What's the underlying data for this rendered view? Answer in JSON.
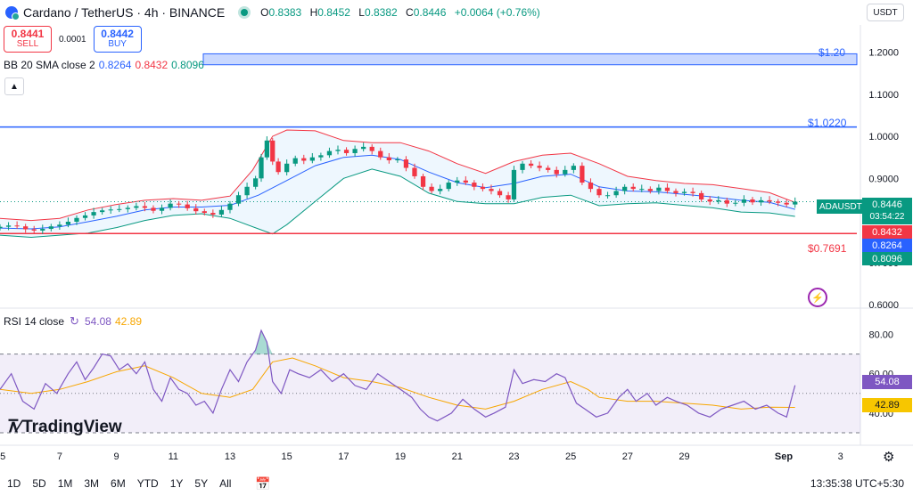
{
  "header": {
    "title": "Cardano / TetherUS · 4h · BINANCE",
    "ohlc": [
      {
        "k": "O",
        "v": "0.8383"
      },
      {
        "k": "H",
        "v": "0.8452"
      },
      {
        "k": "L",
        "v": "0.8382"
      },
      {
        "k": "C",
        "v": "0.8446"
      }
    ],
    "change": "+0.0064 (+0.76%)"
  },
  "trade": {
    "sell_price": "0.8441",
    "sell_label": "SELL",
    "spread": "0.0001",
    "buy_price": "0.8442",
    "buy_label": "BUY"
  },
  "currency": "USDT",
  "bb_legend": {
    "label": "BB 20 SMA close 2",
    "basis": "0.8264",
    "upper": "0.8432",
    "lower": "0.8096"
  },
  "rsi_legend": {
    "label": "RSI 14 close",
    "rsi": "54.08",
    "sma": "42.89"
  },
  "price_tags": {
    "symbol": "ADAUSDT",
    "last": "0.8446",
    "countdown": "03:54:22",
    "upper": "0.8432",
    "basis": "0.8264",
    "lower": "0.8096"
  },
  "rsi_tags": {
    "rsi": "54.08",
    "sma": "42.89"
  },
  "levels": {
    "l120": "$1.20",
    "l1022": "$1.0220",
    "l7691": "$0.7691"
  },
  "logo": "TradingView",
  "toolbar": {
    "timeframes": [
      "1D",
      "5D",
      "1M",
      "3M",
      "6M",
      "YTD",
      "1Y",
      "5Y",
      "All"
    ]
  },
  "clock": "13:35:38 UTC+5:30",
  "colors": {
    "up": "#089981",
    "down": "#f23645",
    "bb_basis": "#2962ff",
    "bb_upper": "#f23645",
    "bb_lower": "#089981",
    "rsi": "#7e57c2",
    "rsi_sma": "#f7a600"
  },
  "chart_data": {
    "type": "candlestick",
    "title": "Cardano / TetherUS · 4h · BINANCE",
    "price_axis": {
      "ticks": [
        "1.2000",
        "1.1000",
        "1.0000",
        "0.9000",
        "0.8000",
        "0.7000",
        "0.6000"
      ],
      "range": [
        0.596,
        1.235
      ]
    },
    "x_axis": {
      "ticks": [
        "5",
        "7",
        "9",
        "11",
        "13",
        "15",
        "17",
        "19",
        "21",
        "23",
        "25",
        "27",
        "29",
        "Sep",
        "3"
      ],
      "range_days": [
        4.9,
        35.2
      ]
    },
    "close_series": [
      [
        4.9,
        0.785
      ],
      [
        5.2,
        0.788
      ],
      [
        5.5,
        0.786
      ],
      [
        5.8,
        0.779
      ],
      [
        6.1,
        0.776
      ],
      [
        6.4,
        0.78
      ],
      [
        6.7,
        0.786
      ],
      [
        7.0,
        0.79
      ],
      [
        7.3,
        0.797
      ],
      [
        7.6,
        0.806
      ],
      [
        7.9,
        0.812
      ],
      [
        8.2,
        0.82
      ],
      [
        8.5,
        0.824
      ],
      [
        8.8,
        0.826
      ],
      [
        9.1,
        0.827
      ],
      [
        9.4,
        0.83
      ],
      [
        9.7,
        0.834
      ],
      [
        10.0,
        0.83
      ],
      [
        10.3,
        0.823
      ],
      [
        10.6,
        0.83
      ],
      [
        10.9,
        0.84
      ],
      [
        11.2,
        0.838
      ],
      [
        11.5,
        0.829
      ],
      [
        11.8,
        0.822
      ],
      [
        12.1,
        0.818
      ],
      [
        12.4,
        0.814
      ],
      [
        12.7,
        0.825
      ],
      [
        13.0,
        0.84
      ],
      [
        13.3,
        0.86
      ],
      [
        13.6,
        0.88
      ],
      [
        13.9,
        0.9
      ],
      [
        14.1,
        0.95
      ],
      [
        14.3,
        0.99
      ],
      [
        14.5,
        0.94
      ],
      [
        14.7,
        0.915
      ],
      [
        15.0,
        0.935
      ],
      [
        15.3,
        0.948
      ],
      [
        15.6,
        0.942
      ],
      [
        15.9,
        0.95
      ],
      [
        16.2,
        0.955
      ],
      [
        16.5,
        0.965
      ],
      [
        16.8,
        0.968
      ],
      [
        17.1,
        0.96
      ],
      [
        17.4,
        0.97
      ],
      [
        17.7,
        0.975
      ],
      [
        18.0,
        0.965
      ],
      [
        18.3,
        0.95
      ],
      [
        18.6,
        0.943
      ],
      [
        18.9,
        0.945
      ],
      [
        19.2,
        0.925
      ],
      [
        19.5,
        0.905
      ],
      [
        19.8,
        0.88
      ],
      [
        20.1,
        0.87
      ],
      [
        20.4,
        0.875
      ],
      [
        20.7,
        0.89
      ],
      [
        21.0,
        0.895
      ],
      [
        21.3,
        0.89
      ],
      [
        21.6,
        0.88
      ],
      [
        21.9,
        0.875
      ],
      [
        22.2,
        0.87
      ],
      [
        22.5,
        0.86
      ],
      [
        22.8,
        0.85
      ],
      [
        23.0,
        0.92
      ],
      [
        23.3,
        0.935
      ],
      [
        23.6,
        0.93
      ],
      [
        23.9,
        0.925
      ],
      [
        24.2,
        0.92
      ],
      [
        24.5,
        0.91
      ],
      [
        24.8,
        0.92
      ],
      [
        25.1,
        0.93
      ],
      [
        25.4,
        0.89
      ],
      [
        25.7,
        0.875
      ],
      [
        26.0,
        0.86
      ],
      [
        26.3,
        0.86
      ],
      [
        26.6,
        0.87
      ],
      [
        26.9,
        0.88
      ],
      [
        27.2,
        0.875
      ],
      [
        27.5,
        0.875
      ],
      [
        27.8,
        0.87
      ],
      [
        28.1,
        0.878
      ],
      [
        28.4,
        0.87
      ],
      [
        28.7,
        0.865
      ],
      [
        29.0,
        0.868
      ],
      [
        29.3,
        0.865
      ],
      [
        29.6,
        0.85
      ],
      [
        29.9,
        0.845
      ],
      [
        30.2,
        0.848
      ],
      [
        30.5,
        0.84
      ],
      [
        30.8,
        0.842
      ],
      [
        31.1,
        0.85
      ],
      [
        31.4,
        0.843
      ],
      [
        31.7,
        0.848
      ],
      [
        32.0,
        0.845
      ],
      [
        32.3,
        0.842
      ],
      [
        32.6,
        0.838
      ],
      [
        32.9,
        0.8446
      ]
    ],
    "bb_upper": [
      [
        4.9,
        0.805
      ],
      [
        6.0,
        0.8
      ],
      [
        7.0,
        0.805
      ],
      [
        8.0,
        0.825
      ],
      [
        9.0,
        0.838
      ],
      [
        10.0,
        0.848
      ],
      [
        11.0,
        0.852
      ],
      [
        12.0,
        0.848
      ],
      [
        13.0,
        0.858
      ],
      [
        13.8,
        0.92
      ],
      [
        14.5,
        1.0
      ],
      [
        15.0,
        1.015
      ],
      [
        16.0,
        1.013
      ],
      [
        17.0,
        0.99
      ],
      [
        18.0,
        0.985
      ],
      [
        19.0,
        0.985
      ],
      [
        20.0,
        0.965
      ],
      [
        21.0,
        0.935
      ],
      [
        22.0,
        0.912
      ],
      [
        23.0,
        0.94
      ],
      [
        24.0,
        0.955
      ],
      [
        25.0,
        0.96
      ],
      [
        26.0,
        0.935
      ],
      [
        27.0,
        0.905
      ],
      [
        28.0,
        0.895
      ],
      [
        29.0,
        0.888
      ],
      [
        30.0,
        0.885
      ],
      [
        31.0,
        0.876
      ],
      [
        32.0,
        0.866
      ],
      [
        32.9,
        0.843
      ]
    ],
    "bb_basis": [
      [
        4.9,
        0.782
      ],
      [
        6.0,
        0.78
      ],
      [
        7.0,
        0.785
      ],
      [
        8.0,
        0.797
      ],
      [
        9.0,
        0.81
      ],
      [
        10.0,
        0.825
      ],
      [
        11.0,
        0.832
      ],
      [
        12.0,
        0.832
      ],
      [
        13.0,
        0.836
      ],
      [
        14.0,
        0.86
      ],
      [
        15.0,
        0.895
      ],
      [
        16.0,
        0.93
      ],
      [
        17.0,
        0.95
      ],
      [
        18.0,
        0.955
      ],
      [
        19.0,
        0.945
      ],
      [
        20.0,
        0.915
      ],
      [
        21.0,
        0.89
      ],
      [
        22.0,
        0.878
      ],
      [
        23.0,
        0.888
      ],
      [
        24.0,
        0.905
      ],
      [
        25.0,
        0.91
      ],
      [
        26.0,
        0.88
      ],
      [
        27.0,
        0.87
      ],
      [
        28.0,
        0.868
      ],
      [
        29.0,
        0.862
      ],
      [
        30.0,
        0.856
      ],
      [
        31.0,
        0.848
      ],
      [
        32.0,
        0.843
      ],
      [
        32.9,
        0.8264
      ]
    ],
    "bb_lower": [
      [
        4.9,
        0.765
      ],
      [
        6.0,
        0.76
      ],
      [
        7.0,
        0.765
      ],
      [
        8.0,
        0.77
      ],
      [
        9.0,
        0.783
      ],
      [
        10.0,
        0.8
      ],
      [
        11.0,
        0.812
      ],
      [
        12.0,
        0.816
      ],
      [
        13.0,
        0.805
      ],
      [
        14.0,
        0.78
      ],
      [
        14.5,
        0.768
      ],
      [
        15.0,
        0.79
      ],
      [
        16.0,
        0.845
      ],
      [
        17.0,
        0.9
      ],
      [
        18.0,
        0.922
      ],
      [
        19.0,
        0.905
      ],
      [
        20.0,
        0.865
      ],
      [
        21.0,
        0.845
      ],
      [
        22.0,
        0.84
      ],
      [
        23.0,
        0.84
      ],
      [
        24.0,
        0.855
      ],
      [
        25.0,
        0.86
      ],
      [
        26.0,
        0.835
      ],
      [
        27.0,
        0.84
      ],
      [
        28.0,
        0.842
      ],
      [
        29.0,
        0.836
      ],
      [
        30.0,
        0.83
      ],
      [
        31.0,
        0.82
      ],
      [
        32.0,
        0.818
      ],
      [
        32.9,
        0.8096
      ]
    ],
    "levels": [
      {
        "label": "$1.20",
        "value": 1.19,
        "type": "zone",
        "from": 1.17,
        "to": 1.196
      },
      {
        "label": "$1.0220",
        "value": 1.022
      },
      {
        "label": "$0.7691",
        "value": 0.7691
      }
    ],
    "rsi": {
      "axis_ticks": [
        "80.00",
        "60.00",
        "40.00"
      ],
      "range": [
        25,
        87
      ],
      "bands": [
        70,
        30
      ],
      "rsi_series": [
        [
          4.9,
          52
        ],
        [
          5.3,
          60
        ],
        [
          5.7,
          46
        ],
        [
          6.1,
          42
        ],
        [
          6.5,
          55
        ],
        [
          6.9,
          50
        ],
        [
          7.3,
          60
        ],
        [
          7.6,
          66
        ],
        [
          7.9,
          57
        ],
        [
          8.2,
          63
        ],
        [
          8.5,
          70
        ],
        [
          8.8,
          69
        ],
        [
          9.1,
          62
        ],
        [
          9.4,
          65
        ],
        [
          9.7,
          60
        ],
        [
          10.0,
          66
        ],
        [
          10.3,
          52
        ],
        [
          10.6,
          46
        ],
        [
          10.9,
          58
        ],
        [
          11.2,
          52
        ],
        [
          11.5,
          50
        ],
        [
          11.8,
          44
        ],
        [
          12.1,
          46
        ],
        [
          12.4,
          40
        ],
        [
          12.7,
          52
        ],
        [
          13.0,
          62
        ],
        [
          13.3,
          56
        ],
        [
          13.6,
          66
        ],
        [
          13.9,
          72
        ],
        [
          14.1,
          82
        ],
        [
          14.3,
          76
        ],
        [
          14.5,
          56
        ],
        [
          14.8,
          50
        ],
        [
          15.1,
          62
        ],
        [
          15.4,
          60
        ],
        [
          15.8,
          58
        ],
        [
          16.2,
          62
        ],
        [
          16.6,
          56
        ],
        [
          17.0,
          60
        ],
        [
          17.4,
          54
        ],
        [
          17.8,
          52
        ],
        [
          18.2,
          60
        ],
        [
          18.6,
          56
        ],
        [
          19.0,
          52
        ],
        [
          19.4,
          48
        ],
        [
          19.7,
          42
        ],
        [
          20.0,
          38
        ],
        [
          20.3,
          36
        ],
        [
          20.8,
          40
        ],
        [
          21.2,
          47
        ],
        [
          21.6,
          42
        ],
        [
          22.0,
          38
        ],
        [
          22.3,
          40
        ],
        [
          22.7,
          43
        ],
        [
          23.0,
          62
        ],
        [
          23.3,
          55
        ],
        [
          23.7,
          57
        ],
        [
          24.1,
          56
        ],
        [
          24.5,
          60
        ],
        [
          24.8,
          58
        ],
        [
          25.2,
          45
        ],
        [
          25.5,
          42
        ],
        [
          25.9,
          38
        ],
        [
          26.3,
          40
        ],
        [
          26.7,
          48
        ],
        [
          27.0,
          52
        ],
        [
          27.3,
          46
        ],
        [
          27.7,
          50
        ],
        [
          28.0,
          44
        ],
        [
          28.4,
          48
        ],
        [
          28.7,
          46
        ],
        [
          29.1,
          44
        ],
        [
          29.5,
          40
        ],
        [
          29.9,
          38
        ],
        [
          30.3,
          42
        ],
        [
          30.7,
          44
        ],
        [
          31.1,
          46
        ],
        [
          31.5,
          42
        ],
        [
          31.9,
          44
        ],
        [
          32.3,
          40
        ],
        [
          32.6,
          38
        ],
        [
          32.9,
          54.08
        ]
      ],
      "sma_series": [
        [
          4.9,
          52
        ],
        [
          6.0,
          50
        ],
        [
          7.0,
          52
        ],
        [
          8.0,
          56
        ],
        [
          9.0,
          61
        ],
        [
          10.0,
          64
        ],
        [
          11.0,
          58
        ],
        [
          12.0,
          50
        ],
        [
          13.0,
          48
        ],
        [
          13.8,
          52
        ],
        [
          14.5,
          66
        ],
        [
          15.2,
          68
        ],
        [
          16.0,
          64
        ],
        [
          17.0,
          58
        ],
        [
          18.0,
          56
        ],
        [
          19.0,
          53
        ],
        [
          20.0,
          48
        ],
        [
          21.0,
          44
        ],
        [
          22.0,
          42
        ],
        [
          23.0,
          46
        ],
        [
          24.0,
          52
        ],
        [
          25.0,
          56
        ],
        [
          25.6,
          52
        ],
        [
          26.0,
          48
        ],
        [
          27.0,
          46
        ],
        [
          28.0,
          46
        ],
        [
          29.0,
          45
        ],
        [
          30.0,
          44
        ],
        [
          31.0,
          42
        ],
        [
          32.0,
          43
        ],
        [
          32.9,
          42.89
        ]
      ]
    }
  }
}
